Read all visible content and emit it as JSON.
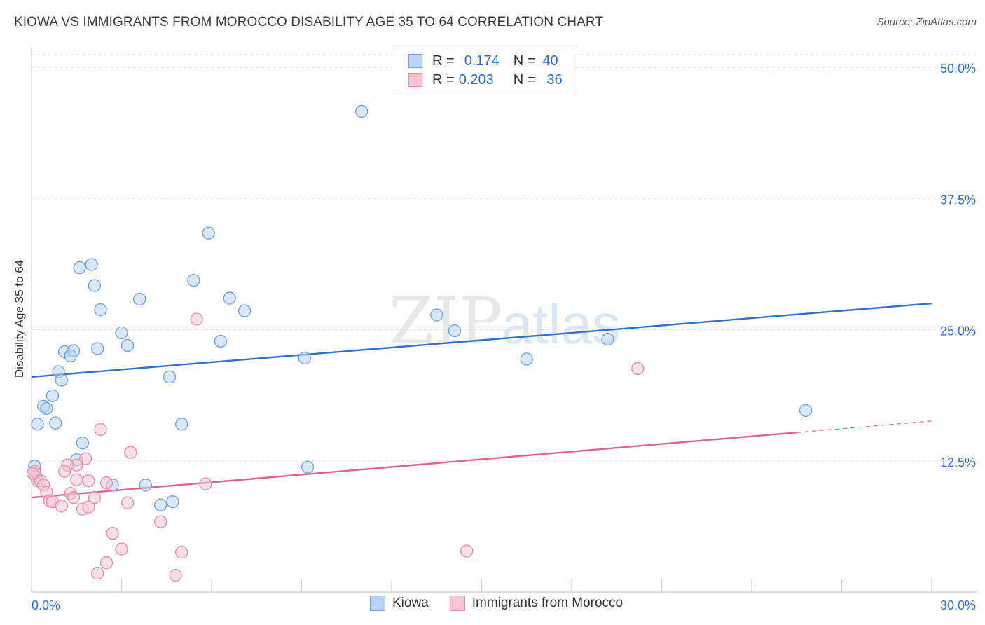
{
  "title": "KIOWA VS IMMIGRANTS FROM MOROCCO DISABILITY AGE 35 TO 64 CORRELATION CHART",
  "source": "Source: ZipAtlas.com",
  "watermark": {
    "zip": "ZIP",
    "atlas": "atlas"
  },
  "legend": {
    "rows": [
      {
        "r_label": "R =",
        "r_value": "0.174",
        "n_label": "N =",
        "n_value": "40"
      },
      {
        "r_label": "R =",
        "r_value": "0.203",
        "n_label": "N =",
        "n_value": "36"
      }
    ]
  },
  "colors": {
    "kiowa_fill": "#b8d3f5",
    "kiowa_stroke": "#6f9fe0",
    "kiowa_line": "#2e6fd0",
    "morocco_fill": "#f8c4d4",
    "morocco_stroke": "#e98aa8",
    "morocco_line": "#e0628f",
    "axis_text": "#2d6fcc",
    "grid": "#dedede"
  },
  "chart_data": {
    "type": "scatter",
    "title": "KIOWA VS IMMIGRANTS FROM MOROCCO DISABILITY AGE 35 TO 64 CORRELATION CHART",
    "xlabel": "",
    "ylabel": "Disability Age 35 to 64",
    "xlim": [
      0,
      30
    ],
    "ylim": [
      0,
      52
    ],
    "x_tick_labels": [
      "0.0%",
      "30.0%"
    ],
    "y_ticks": [
      12.5,
      25.0,
      37.5,
      50.0
    ],
    "y_tick_labels": [
      "12.5%",
      "25.0%",
      "37.5%",
      "50.0%"
    ],
    "legend_position": "top-center",
    "series": [
      {
        "name": "Kiowa",
        "r": 0.174,
        "n": 40,
        "trend": {
          "x": [
            0,
            30
          ],
          "y": [
            20.5,
            27.5
          ],
          "dashed_from": null
        },
        "points": [
          [
            11.0,
            45.8
          ],
          [
            5.9,
            34.2
          ],
          [
            2.0,
            31.2
          ],
          [
            1.6,
            30.9
          ],
          [
            2.1,
            29.2
          ],
          [
            5.4,
            29.7
          ],
          [
            3.6,
            27.9
          ],
          [
            6.6,
            28.0
          ],
          [
            2.3,
            26.9
          ],
          [
            7.1,
            26.8
          ],
          [
            13.5,
            26.4
          ],
          [
            14.1,
            24.9
          ],
          [
            19.2,
            24.1
          ],
          [
            3.0,
            24.7
          ],
          [
            6.3,
            23.9
          ],
          [
            3.2,
            23.5
          ],
          [
            2.2,
            23.2
          ],
          [
            1.1,
            22.9
          ],
          [
            1.4,
            23.0
          ],
          [
            1.3,
            22.5
          ],
          [
            9.1,
            22.3
          ],
          [
            16.5,
            22.2
          ],
          [
            0.9,
            21.0
          ],
          [
            1.0,
            20.2
          ],
          [
            4.6,
            20.5
          ],
          [
            0.7,
            18.7
          ],
          [
            0.4,
            17.7
          ],
          [
            0.5,
            17.5
          ],
          [
            25.8,
            17.3
          ],
          [
            0.2,
            16.0
          ],
          [
            0.8,
            16.1
          ],
          [
            5.0,
            16.0
          ],
          [
            1.7,
            14.2
          ],
          [
            1.5,
            12.6
          ],
          [
            0.1,
            12.0
          ],
          [
            9.2,
            11.9
          ],
          [
            2.7,
            10.2
          ],
          [
            3.8,
            10.2
          ],
          [
            4.3,
            8.3
          ],
          [
            4.7,
            8.6
          ]
        ]
      },
      {
        "name": "Immigrants from Morocco",
        "r": 0.203,
        "n": 36,
        "trend": {
          "x": [
            0,
            30
          ],
          "y": [
            9.0,
            16.3
          ],
          "dashed_from": 25.5
        },
        "points": [
          [
            5.5,
            26.0
          ],
          [
            20.2,
            21.3
          ],
          [
            2.3,
            15.5
          ],
          [
            3.3,
            13.3
          ],
          [
            1.8,
            12.7
          ],
          [
            1.5,
            12.1
          ],
          [
            1.2,
            12.1
          ],
          [
            1.1,
            11.5
          ],
          [
            0.1,
            11.5
          ],
          [
            0.15,
            11.0
          ],
          [
            0.2,
            10.6
          ],
          [
            0.3,
            10.6
          ],
          [
            0.4,
            10.2
          ],
          [
            1.5,
            10.7
          ],
          [
            1.9,
            10.6
          ],
          [
            2.5,
            10.4
          ],
          [
            5.8,
            10.3
          ],
          [
            0.5,
            9.5
          ],
          [
            1.3,
            9.4
          ],
          [
            1.4,
            9.0
          ],
          [
            2.1,
            9.0
          ],
          [
            0.6,
            8.7
          ],
          [
            0.7,
            8.6
          ],
          [
            1.0,
            8.2
          ],
          [
            3.2,
            8.5
          ],
          [
            1.7,
            7.9
          ],
          [
            1.9,
            8.1
          ],
          [
            4.3,
            6.7
          ],
          [
            2.7,
            5.6
          ],
          [
            3.0,
            4.1
          ],
          [
            5.0,
            3.8
          ],
          [
            14.5,
            3.9
          ],
          [
            2.5,
            2.8
          ],
          [
            2.2,
            1.8
          ],
          [
            4.8,
            1.6
          ],
          [
            0.05,
            11.3
          ]
        ]
      }
    ]
  }
}
